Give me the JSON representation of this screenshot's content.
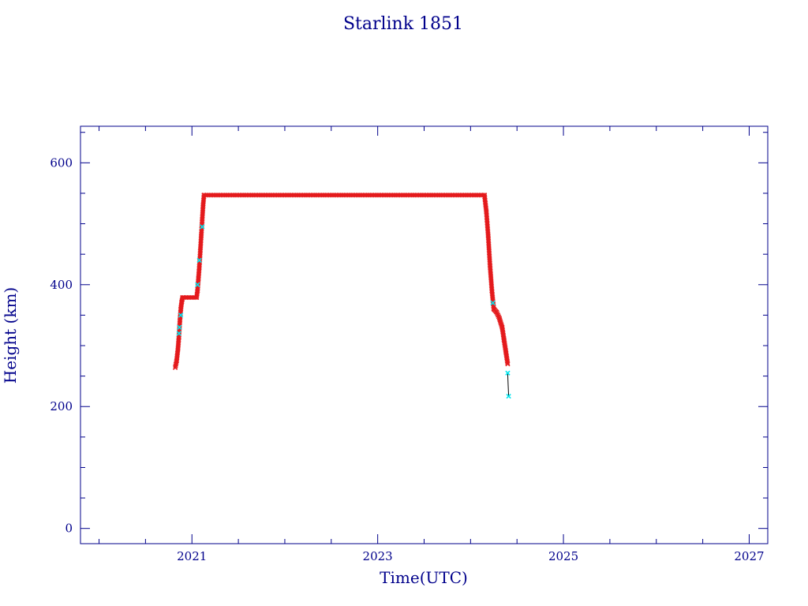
{
  "chart_data": {
    "type": "scatter",
    "title": "Starlink 1851",
    "xlabel": "Time(UTC)",
    "ylabel": "Height (km)",
    "xlim": [
      2019.8,
      2027.2
    ],
    "ylim": [
      -25,
      660
    ],
    "x_ticks": [
      2021,
      2023,
      2025,
      2027
    ],
    "x_tick_labels": [
      "2021",
      "2023",
      "2025",
      "2027"
    ],
    "y_ticks": [
      0,
      200,
      400,
      600
    ],
    "y_tick_labels": [
      "0",
      "200",
      "400",
      "600"
    ],
    "grid": false,
    "colors": {
      "axes": "#00008b",
      "primary_points": "#e41a1c",
      "secondary_points": "#00e5ee",
      "line": "#000000"
    },
    "series": [
      {
        "marker": "x",
        "color": "#e41a1c",
        "segments": [
          [
            [
              2020.82,
              264
            ],
            [
              2020.835,
              275
            ],
            [
              2020.85,
              295
            ],
            [
              2020.86,
              315
            ],
            [
              2020.87,
              340
            ],
            [
              2020.88,
              360
            ],
            [
              2020.89,
              372
            ],
            [
              2020.9,
              379
            ]
          ],
          [
            [
              2020.9,
              379
            ],
            [
              2021.05,
              379
            ]
          ],
          [
            [
              2021.05,
              379
            ],
            [
              2021.06,
              390
            ],
            [
              2021.07,
              410
            ],
            [
              2021.08,
              430
            ],
            [
              2021.09,
              455
            ],
            [
              2021.1,
              480
            ],
            [
              2021.11,
              505
            ],
            [
              2021.12,
              530
            ],
            [
              2021.13,
              547
            ]
          ],
          [
            [
              2021.13,
              547
            ],
            [
              2024.15,
              547
            ]
          ],
          [
            [
              2024.15,
              547
            ],
            [
              2024.17,
              520
            ],
            [
              2024.19,
              480
            ],
            [
              2024.21,
              430
            ],
            [
              2024.23,
              390
            ],
            [
              2024.25,
              360
            ]
          ],
          [
            [
              2024.25,
              360
            ],
            [
              2024.28,
              355
            ],
            [
              2024.31,
              345
            ],
            [
              2024.34,
              330
            ],
            [
              2024.36,
              310
            ],
            [
              2024.38,
              290
            ],
            [
              2024.4,
              270
            ]
          ]
        ]
      },
      {
        "marker": "x",
        "color": "#00e5ee",
        "points": [
          [
            2020.86,
            320
          ],
          [
            2020.865,
            330
          ],
          [
            2020.88,
            350
          ],
          [
            2021.06,
            400
          ],
          [
            2021.08,
            440
          ],
          [
            2021.11,
            495
          ],
          [
            2024.24,
            370
          ],
          [
            2024.4,
            255
          ],
          [
            2024.41,
            217
          ]
        ]
      }
    ],
    "connector_line": [
      [
        2024.4,
        255
      ],
      [
        2024.405,
        235
      ],
      [
        2024.41,
        217
      ]
    ]
  }
}
